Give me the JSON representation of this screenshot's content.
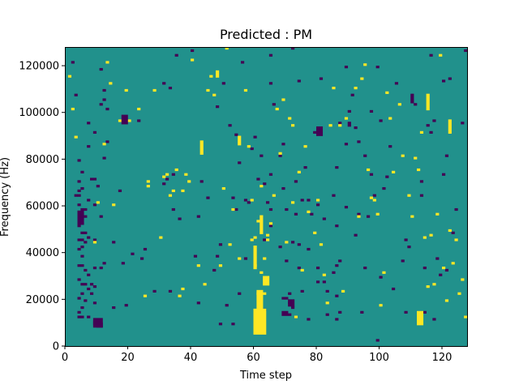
{
  "chart_data": {
    "type": "heatmap",
    "title": "Predicted : PM",
    "xlabel": "Time step",
    "ylabel": "Frequency (Hz)",
    "xlim": [
      0,
      128
    ],
    "ylim": [
      0,
      128000
    ],
    "xticks": [
      0,
      20,
      40,
      60,
      80,
      100,
      120
    ],
    "yticks": [
      0,
      20000,
      40000,
      60000,
      80000,
      100000,
      120000
    ],
    "grid": false,
    "legend": "none",
    "colors": {
      "low": "#440154",
      "mid": "#21918c",
      "high": "#fde725"
    },
    "background_value": 0,
    "cell_size": {
      "time_steps": 1,
      "hz": 1000
    },
    "low_cells": [
      [
        2,
        121
      ],
      [
        3,
        107
      ],
      [
        3,
        64
      ],
      [
        4,
        79
      ],
      [
        4,
        70
      ],
      [
        4,
        66
      ],
      [
        4,
        64
      ],
      [
        4,
        60
      ],
      [
        4,
        51
      ],
      [
        4,
        45
      ],
      [
        4,
        41
      ],
      [
        4,
        34
      ],
      [
        4,
        28
      ],
      [
        4,
        20
      ],
      [
        4,
        14
      ],
      [
        4,
        12
      ],
      [
        5,
        74
      ],
      [
        5,
        67
      ],
      [
        5,
        58
      ],
      [
        5,
        56
      ],
      [
        5,
        54
      ],
      [
        5,
        52
      ],
      [
        5,
        48
      ],
      [
        5,
        45
      ],
      [
        5,
        42
      ],
      [
        5,
        38
      ],
      [
        5,
        34
      ],
      [
        5,
        26
      ],
      [
        5,
        22
      ],
      [
        5,
        16
      ],
      [
        5,
        12
      ],
      [
        6,
        58
      ],
      [
        6,
        55
      ],
      [
        6,
        48
      ],
      [
        6,
        44
      ],
      [
        6,
        32
      ],
      [
        6,
        26
      ],
      [
        6,
        19
      ],
      [
        7,
        95
      ],
      [
        7,
        85
      ],
      [
        7,
        62
      ],
      [
        7,
        46
      ],
      [
        7,
        30
      ],
      [
        7,
        24
      ],
      [
        7,
        12
      ],
      [
        8,
        71
      ],
      [
        8,
        26
      ],
      [
        8,
        22
      ],
      [
        9,
        91
      ],
      [
        9,
        71
      ],
      [
        9,
        60
      ],
      [
        9,
        45
      ],
      [
        9,
        33
      ],
      [
        9,
        25
      ],
      [
        9,
        18
      ],
      [
        9,
        10
      ],
      [
        9,
        9
      ],
      [
        10,
        68
      ],
      [
        10,
        9
      ],
      [
        10,
        8
      ],
      [
        11,
        118
      ],
      [
        11,
        103
      ],
      [
        11,
        55
      ],
      [
        11,
        33
      ],
      [
        11,
        9
      ],
      [
        11,
        8
      ],
      [
        12,
        109
      ],
      [
        12,
        105
      ],
      [
        12,
        80
      ],
      [
        12,
        35
      ],
      [
        13,
        87
      ],
      [
        13,
        101
      ],
      [
        15,
        44
      ],
      [
        15,
        16
      ],
      [
        17,
        66
      ],
      [
        18,
        35
      ],
      [
        19,
        17
      ],
      [
        21,
        39
      ],
      [
        23,
        96
      ],
      [
        24,
        37
      ],
      [
        25,
        41
      ],
      [
        28,
        23
      ],
      [
        31,
        112
      ],
      [
        31,
        69
      ],
      [
        32,
        71
      ],
      [
        33,
        110
      ],
      [
        33,
        23
      ],
      [
        34,
        58
      ],
      [
        34,
        73
      ],
      [
        35,
        124
      ],
      [
        36,
        54
      ],
      [
        40,
        126
      ],
      [
        41,
        38
      ],
      [
        42,
        55
      ],
      [
        42,
        18
      ],
      [
        43,
        70
      ],
      [
        45,
        63
      ],
      [
        47,
        32
      ],
      [
        48,
        102
      ],
      [
        48,
        38
      ],
      [
        49,
        43
      ],
      [
        49,
        9
      ],
      [
        50,
        112
      ],
      [
        51,
        17
      ],
      [
        52,
        94
      ],
      [
        53,
        63
      ],
      [
        53,
        9
      ],
      [
        54,
        90
      ],
      [
        54,
        58
      ],
      [
        55,
        78
      ],
      [
        55,
        22
      ],
      [
        56,
        121
      ],
      [
        57,
        62
      ],
      [
        57,
        37
      ],
      [
        58,
        61
      ],
      [
        59,
        84
      ],
      [
        60,
        89
      ],
      [
        61,
        71
      ],
      [
        62,
        81
      ],
      [
        63,
        69
      ],
      [
        63,
        45
      ],
      [
        63,
        15
      ],
      [
        64,
        61
      ],
      [
        65,
        124
      ],
      [
        65,
        112
      ],
      [
        65,
        73
      ],
      [
        65,
        58
      ],
      [
        65,
        51
      ],
      [
        66,
        103
      ],
      [
        68,
        42
      ],
      [
        68,
        81
      ],
      [
        69,
        86
      ],
      [
        69,
        67
      ],
      [
        69,
        20
      ],
      [
        70,
        36
      ],
      [
        70,
        58
      ],
      [
        70,
        20
      ],
      [
        71,
        18
      ],
      [
        71,
        22
      ],
      [
        71,
        13
      ],
      [
        72,
        127
      ],
      [
        72,
        44
      ],
      [
        72,
        16
      ],
      [
        73,
        70
      ],
      [
        73,
        56
      ],
      [
        73,
        12
      ],
      [
        74,
        113
      ],
      [
        74,
        43
      ],
      [
        74,
        33
      ],
      [
        75,
        23
      ],
      [
        75,
        62
      ],
      [
        76,
        76
      ],
      [
        77,
        62
      ],
      [
        77,
        11
      ],
      [
        77,
        41
      ],
      [
        78,
        56
      ],
      [
        79,
        91
      ],
      [
        80,
        91
      ],
      [
        80,
        60
      ],
      [
        80,
        33
      ],
      [
        80,
        27
      ],
      [
        81,
        114
      ],
      [
        82,
        54
      ],
      [
        82,
        27
      ],
      [
        83,
        23
      ],
      [
        83,
        13
      ],
      [
        85,
        31
      ],
      [
        85,
        64
      ],
      [
        86,
        76
      ],
      [
        86,
        51
      ],
      [
        86,
        34
      ],
      [
        86,
        21
      ],
      [
        86,
        11
      ],
      [
        87,
        95
      ],
      [
        87,
        36
      ],
      [
        87,
        14
      ],
      [
        89,
        119
      ],
      [
        89,
        86
      ],
      [
        89,
        59
      ],
      [
        90,
        100
      ],
      [
        91,
        107
      ],
      [
        92,
        47
      ],
      [
        92,
        93
      ],
      [
        93,
        87
      ],
      [
        93,
        56
      ],
      [
        94,
        14
      ],
      [
        95,
        33
      ],
      [
        95,
        81
      ],
      [
        96,
        55
      ],
      [
        97,
        73
      ],
      [
        97,
        100
      ],
      [
        98,
        64
      ],
      [
        99,
        119
      ],
      [
        99,
        2
      ],
      [
        100,
        29
      ],
      [
        100,
        96
      ],
      [
        101,
        67
      ],
      [
        102,
        72
      ],
      [
        103,
        85
      ],
      [
        104,
        24
      ],
      [
        105,
        112
      ],
      [
        107,
        36
      ],
      [
        108,
        45
      ],
      [
        108,
        14
      ],
      [
        109,
        42
      ],
      [
        111,
        103
      ],
      [
        112,
        13
      ],
      [
        113,
        70
      ],
      [
        113,
        64
      ],
      [
        114,
        33
      ],
      [
        114,
        14
      ],
      [
        115,
        94
      ],
      [
        116,
        124
      ],
      [
        116,
        91
      ],
      [
        117,
        96
      ],
      [
        117,
        11
      ],
      [
        118,
        37
      ],
      [
        119,
        30
      ],
      [
        120,
        113
      ],
      [
        120,
        73
      ],
      [
        121,
        32
      ],
      [
        121,
        81
      ],
      [
        122,
        114
      ],
      [
        123,
        48
      ],
      [
        124,
        58
      ],
      [
        126,
        95
      ],
      [
        127,
        126
      ]
    ],
    "high_cells": [
      [
        1,
        115
      ],
      [
        2,
        101
      ],
      [
        3,
        89
      ],
      [
        9,
        44
      ],
      [
        10,
        61
      ],
      [
        12,
        86
      ],
      [
        13,
        121
      ],
      [
        14,
        112
      ],
      [
        15,
        60
      ],
      [
        17,
        96
      ],
      [
        18,
        96
      ],
      [
        19,
        109
      ],
      [
        20,
        96
      ],
      [
        23,
        101
      ],
      [
        25,
        21
      ],
      [
        26,
        70
      ],
      [
        26,
        68
      ],
      [
        28,
        109
      ],
      [
        30,
        46
      ],
      [
        31,
        72
      ],
      [
        32,
        73
      ],
      [
        33,
        64
      ],
      [
        34,
        66
      ],
      [
        35,
        75
      ],
      [
        36,
        21
      ],
      [
        37,
        24
      ],
      [
        37,
        66
      ],
      [
        38,
        73
      ],
      [
        39,
        70
      ],
      [
        40,
        122
      ],
      [
        42,
        34
      ],
      [
        44,
        26
      ],
      [
        45,
        109
      ],
      [
        46,
        115
      ],
      [
        47,
        107
      ],
      [
        48,
        117
      ],
      [
        49,
        34
      ],
      [
        50,
        67
      ],
      [
        51,
        127
      ],
      [
        52,
        43
      ],
      [
        53,
        58
      ],
      [
        55,
        37
      ],
      [
        57,
        109
      ],
      [
        58,
        85
      ],
      [
        59,
        62
      ],
      [
        59,
        45
      ],
      [
        60,
        46
      ],
      [
        60,
        34
      ],
      [
        61,
        53
      ],
      [
        61,
        22
      ],
      [
        62,
        31
      ],
      [
        62,
        68
      ],
      [
        63,
        22
      ],
      [
        63,
        37
      ],
      [
        64,
        45
      ],
      [
        64,
        47
      ],
      [
        65,
        52
      ],
      [
        66,
        64
      ],
      [
        67,
        101
      ],
      [
        68,
        82
      ],
      [
        69,
        105
      ],
      [
        70,
        44
      ],
      [
        71,
        97
      ],
      [
        72,
        94
      ],
      [
        72,
        61
      ],
      [
        73,
        12
      ],
      [
        74,
        74
      ],
      [
        75,
        32
      ],
      [
        76,
        85
      ],
      [
        77,
        57
      ],
      [
        79,
        48
      ],
      [
        80,
        62
      ],
      [
        81,
        43
      ],
      [
        82,
        30
      ],
      [
        83,
        18
      ],
      [
        84,
        94
      ],
      [
        85,
        110
      ],
      [
        87,
        94
      ],
      [
        88,
        23
      ],
      [
        89,
        97
      ],
      [
        92,
        110
      ],
      [
        93,
        55
      ],
      [
        94,
        114
      ],
      [
        95,
        120
      ],
      [
        96,
        75
      ],
      [
        97,
        63
      ],
      [
        98,
        62
      ],
      [
        99,
        56
      ],
      [
        100,
        17
      ],
      [
        101,
        31
      ],
      [
        102,
        108
      ],
      [
        103,
        97
      ],
      [
        104,
        74
      ],
      [
        106,
        103
      ],
      [
        107,
        81
      ],
      [
        109,
        64
      ],
      [
        110,
        55
      ],
      [
        111,
        80
      ],
      [
        112,
        75
      ],
      [
        113,
        91
      ],
      [
        114,
        46
      ],
      [
        115,
        25
      ],
      [
        116,
        47
      ],
      [
        117,
        26
      ],
      [
        118,
        56
      ],
      [
        119,
        124
      ],
      [
        120,
        33
      ],
      [
        121,
        19
      ],
      [
        122,
        49
      ],
      [
        123,
        35
      ],
      [
        124,
        45
      ],
      [
        125,
        22
      ],
      [
        126,
        28
      ],
      [
        127,
        12
      ]
    ],
    "low_blocks": [
      [
        18,
        95,
        2,
        4
      ],
      [
        80,
        90,
        2,
        4
      ],
      [
        71,
        17,
        2,
        3
      ],
      [
        69,
        13,
        2,
        2
      ],
      [
        9,
        8,
        3,
        4
      ],
      [
        4,
        52,
        2,
        6
      ],
      [
        110,
        104,
        1,
        4
      ],
      [
        90,
        94,
        1,
        2
      ]
    ],
    "high_blocks": [
      [
        60,
        5,
        4,
        11
      ],
      [
        61,
        16,
        2,
        8
      ],
      [
        63,
        26,
        2,
        4
      ],
      [
        62,
        48,
        1,
        8
      ],
      [
        60,
        33,
        1,
        10
      ],
      [
        48,
        115,
        1,
        2
      ],
      [
        112,
        9,
        2,
        6
      ],
      [
        115,
        101,
        1,
        7
      ],
      [
        122,
        91,
        1,
        6
      ],
      [
        43,
        82,
        1,
        6
      ],
      [
        55,
        86,
        1,
        4
      ]
    ]
  }
}
